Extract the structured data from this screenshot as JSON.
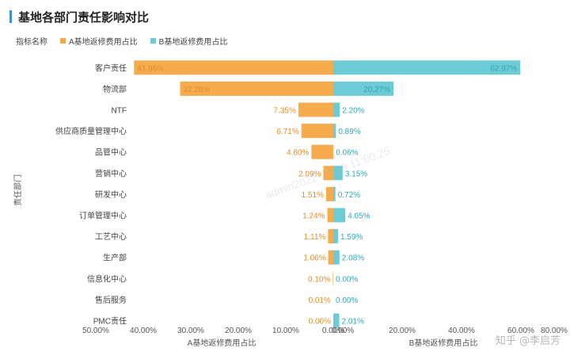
{
  "header": {
    "title": "基地各部门责任影响对比"
  },
  "legend": {
    "label": "指标名称",
    "items": [
      "A基地返修费用占比",
      "B基地返修费用占比"
    ]
  },
  "watermark": {
    "text": "admin2022-04-29 11:00:25",
    "credit": "知乎 @李启芳"
  },
  "colors": {
    "a": "#f6ac4e",
    "b": "#6dcbd5",
    "accent": "#3d8fd8"
  },
  "chart_data": {
    "type": "bar",
    "orientation": "horizontal-butterfly",
    "categories": [
      "客户责任",
      "物流部",
      "NTF",
      "供应商质量管理中心",
      "品管中心",
      "营销中心",
      "研发中心",
      "订单管理中心",
      "工艺中心",
      "生产部",
      "信息化中心",
      "售后服务",
      "PMC责任"
    ],
    "series": [
      {
        "name": "A基地返修费用占比",
        "values": [
          41.96,
          32.26,
          7.35,
          6.71,
          4.6,
          2.09,
          1.51,
          1.24,
          1.11,
          1.06,
          0.1,
          0.01,
          0.0
        ],
        "labels": [
          "41.96%",
          "32.26%",
          "7.35%",
          "6.71%",
          "4.60%",
          "2.09%",
          "1.51%",
          "1.24%",
          "1.11%",
          "1.06%",
          "0.10%",
          "0.01%",
          "0.00%"
        ]
      },
      {
        "name": "B基地返修费用占比",
        "values": [
          62.97,
          20.27,
          2.2,
          0.89,
          0.06,
          3.15,
          0.72,
          4.05,
          1.59,
          2.08,
          0.0,
          0.0,
          2.01
        ],
        "labels": [
          "62.97%",
          "20.27%",
          "2.20%",
          "0.89%",
          "0.06%",
          "3.15%",
          "0.72%",
          "4.05%",
          "1.59%",
          "2.08%",
          "0.00%",
          "0.00%",
          "2.01%"
        ]
      }
    ],
    "ylabel": "责任部门",
    "left_axis": {
      "title": "A基地返修费用占比",
      "ticks": [
        "50.00%",
        "40.00%",
        "30.00%",
        "20.00%",
        "10.00%",
        "0.00%"
      ],
      "tick_values": [
        50,
        40,
        30,
        20,
        10,
        0
      ],
      "max": 50
    },
    "right_axis": {
      "title": "B基地返修费用占比",
      "ticks": [
        "0.00%",
        "20.00%",
        "40.00%",
        "60.00%",
        "80.00%"
      ],
      "tick_values": [
        0,
        20,
        40,
        60,
        80
      ],
      "max": 80
    }
  }
}
